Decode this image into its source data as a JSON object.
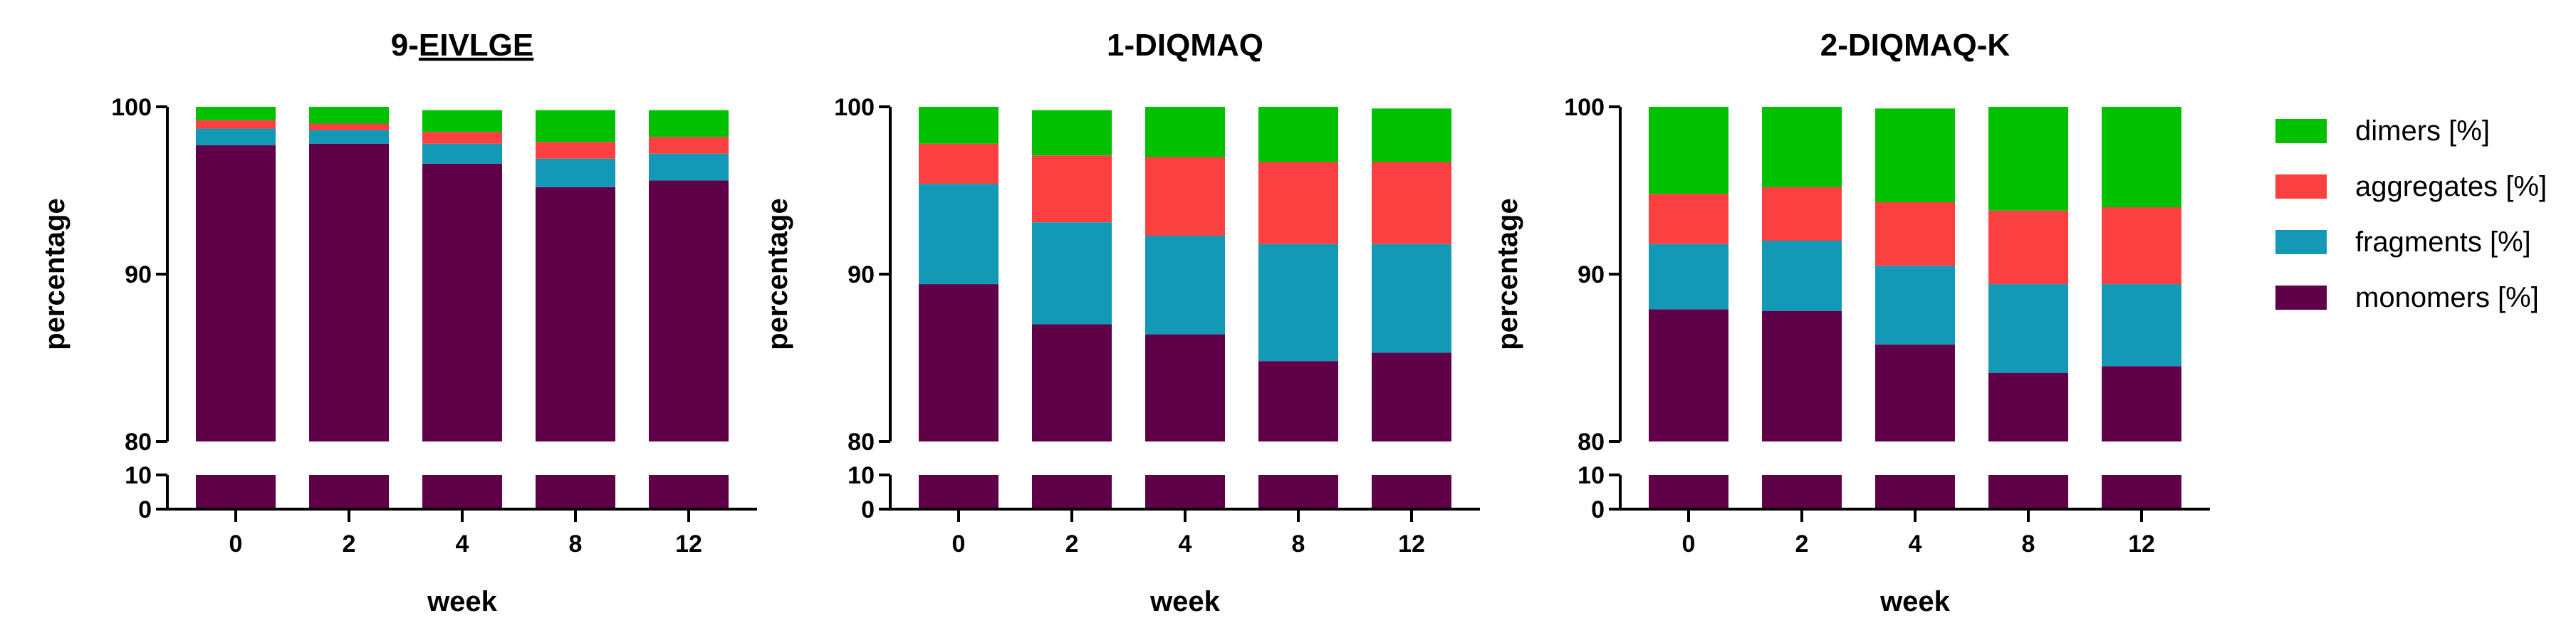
{
  "chart_data": [
    {
      "type": "bar",
      "stacked": true,
      "title": "9-EIVLGE",
      "title_underlined_part": "EIVLGE",
      "xlabel": "week",
      "ylabel": "percentage",
      "categories": [
        "0",
        "2",
        "4",
        "8",
        "12"
      ],
      "y_axis_segments": [
        {
          "range": [
            80,
            100
          ],
          "ticks": [
            "80",
            "90",
            "100"
          ]
        },
        {
          "range": [
            0,
            10
          ],
          "ticks": [
            "0",
            "10"
          ]
        }
      ],
      "series": [
        {
          "name": "monomers [%]",
          "values": [
            97.7,
            97.8,
            96.6,
            95.2,
            95.6
          ]
        },
        {
          "name": "fragments [%]",
          "values": [
            1.0,
            0.8,
            1.2,
            1.7,
            1.6
          ]
        },
        {
          "name": "aggregates [%]",
          "values": [
            0.5,
            0.4,
            0.7,
            1.0,
            1.0
          ]
        },
        {
          "name": "dimers [%]",
          "values": [
            0.8,
            1.0,
            1.3,
            1.9,
            1.6
          ]
        }
      ]
    },
    {
      "type": "bar",
      "stacked": true,
      "title": "1-DIQMAQ",
      "xlabel": "week",
      "ylabel": "percentage",
      "categories": [
        "0",
        "2",
        "4",
        "8",
        "12"
      ],
      "y_axis_segments": [
        {
          "range": [
            80,
            100
          ],
          "ticks": [
            "80",
            "90",
            "100"
          ]
        },
        {
          "range": [
            0,
            10
          ],
          "ticks": [
            "0",
            "10"
          ]
        }
      ],
      "series": [
        {
          "name": "monomers [%]",
          "values": [
            89.4,
            87.0,
            86.4,
            84.8,
            85.3
          ]
        },
        {
          "name": "fragments [%]",
          "values": [
            6.0,
            6.1,
            5.9,
            7.0,
            6.5
          ]
        },
        {
          "name": "aggregates [%]",
          "values": [
            2.4,
            4.0,
            4.7,
            4.9,
            4.9
          ]
        },
        {
          "name": "dimers [%]",
          "values": [
            2.2,
            2.7,
            3.0,
            3.3,
            3.2
          ]
        }
      ]
    },
    {
      "type": "bar",
      "stacked": true,
      "title": "2-DIQMAQ-K",
      "xlabel": "week",
      "ylabel": "percentage",
      "categories": [
        "0",
        "2",
        "4",
        "8",
        "12"
      ],
      "y_axis_segments": [
        {
          "range": [
            80,
            100
          ],
          "ticks": [
            "80",
            "90",
            "100"
          ]
        },
        {
          "range": [
            0,
            10
          ],
          "ticks": [
            "0",
            "10"
          ]
        }
      ],
      "series": [
        {
          "name": "monomers [%]",
          "values": [
            87.9,
            87.8,
            85.8,
            84.1,
            84.5
          ]
        },
        {
          "name": "fragments [%]",
          "values": [
            3.9,
            4.2,
            4.7,
            5.3,
            4.9
          ]
        },
        {
          "name": "aggregates [%]",
          "values": [
            3.0,
            3.2,
            3.8,
            4.4,
            4.6
          ]
        },
        {
          "name": "dimers [%]",
          "values": [
            5.2,
            4.8,
            5.6,
            6.2,
            6.0
          ]
        }
      ]
    }
  ],
  "legend": [
    {
      "name": "dimers [%]",
      "color": "#00c000"
    },
    {
      "name": "aggregates [%]",
      "color": "#fa4040"
    },
    {
      "name": "fragments [%]",
      "color": "#1398b5"
    },
    {
      "name": "monomers [%]",
      "color": "#5f0049"
    }
  ]
}
